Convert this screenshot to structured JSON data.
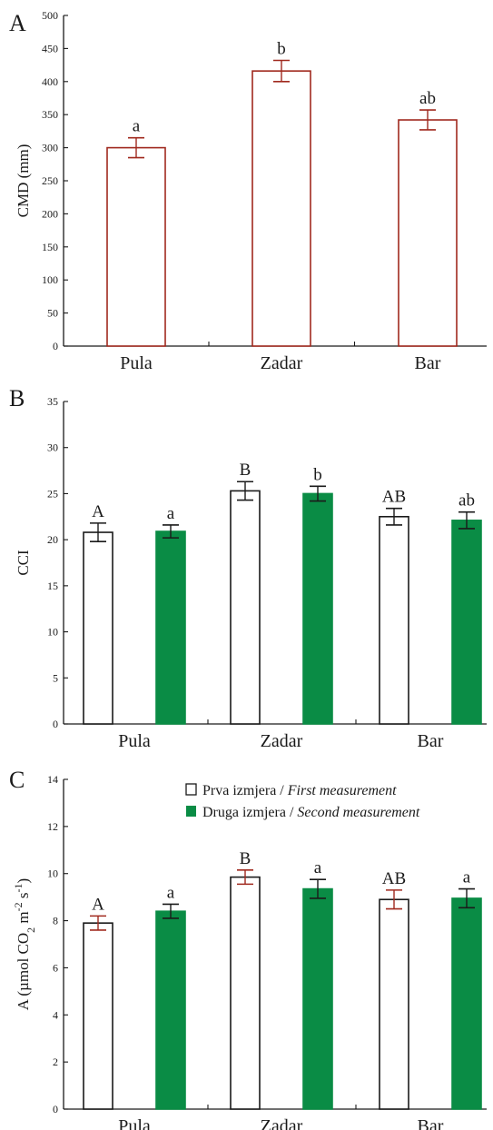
{
  "colors": {
    "bar_outline_A": "#a0291e",
    "bar_outline_BC": "#1a1a1a",
    "second_fill": "#0a8c45",
    "err_A": "#a0291e",
    "err_BC_dark": "#1a1a1a",
    "err_C_red": "#a0291e"
  },
  "legend": {
    "first": {
      "plain": "Prva izmjera / ",
      "italic": "First measurement"
    },
    "second": {
      "plain": "Druga izmjera / ",
      "italic": "Second measurement"
    },
    "placement": "top-right of panel C"
  },
  "chart_data": [
    {
      "panel": "A",
      "type": "bar",
      "title": "",
      "xlabel": "",
      "ylabel": "CMD (mm)",
      "ylim": [
        0,
        500
      ],
      "yticks": [
        0,
        50,
        100,
        150,
        200,
        250,
        300,
        350,
        400,
        450,
        500
      ],
      "categories": [
        "Pula",
        "Zadar",
        "Bar"
      ],
      "series": [
        {
          "values": [
            300,
            416,
            342
          ],
          "err": [
            15,
            16,
            15
          ],
          "labels": [
            "a",
            "b",
            "ab"
          ],
          "style": "hollow"
        }
      ]
    },
    {
      "panel": "B",
      "type": "bar",
      "title": "",
      "xlabel": "",
      "ylabel": "CCI",
      "ylim": [
        0,
        35
      ],
      "yticks": [
        0,
        5,
        10,
        15,
        20,
        25,
        30,
        35
      ],
      "categories": [
        "Pula",
        "Zadar",
        "Bar"
      ],
      "series": [
        {
          "values": [
            20.8,
            25.3,
            22.5
          ],
          "err": [
            1.0,
            1.0,
            0.9
          ],
          "labels": [
            "A",
            "B",
            "AB"
          ],
          "style": "hollow"
        },
        {
          "values": [
            20.9,
            25.0,
            22.1
          ],
          "err": [
            0.7,
            0.8,
            0.9
          ],
          "labels": [
            "a",
            "b",
            "ab"
          ],
          "style": "filled"
        }
      ]
    },
    {
      "panel": "C",
      "type": "bar",
      "title": "",
      "xlabel": "",
      "ylabel_parts": [
        "A (",
        "µmol CO",
        "2",
        " m",
        "-2",
        " s",
        "-1",
        ")"
      ],
      "ylim": [
        0,
        14
      ],
      "yticks": [
        0,
        2,
        4,
        6,
        8,
        10,
        12,
        14
      ],
      "categories": [
        "Pula",
        "Zadar",
        "Bar"
      ],
      "series": [
        {
          "name": "Prva izmjera / First measurement",
          "values": [
            7.9,
            9.85,
            8.9
          ],
          "err": [
            0.3,
            0.3,
            0.4
          ],
          "labels": [
            "A",
            "B",
            "AB"
          ],
          "style": "hollow"
        },
        {
          "name": "Druga izmjera / Second measurement",
          "values": [
            8.4,
            9.35,
            8.95
          ],
          "err": [
            0.3,
            0.4,
            0.4
          ],
          "labels": [
            "a",
            "a",
            "a"
          ],
          "style": "filled"
        }
      ]
    }
  ]
}
